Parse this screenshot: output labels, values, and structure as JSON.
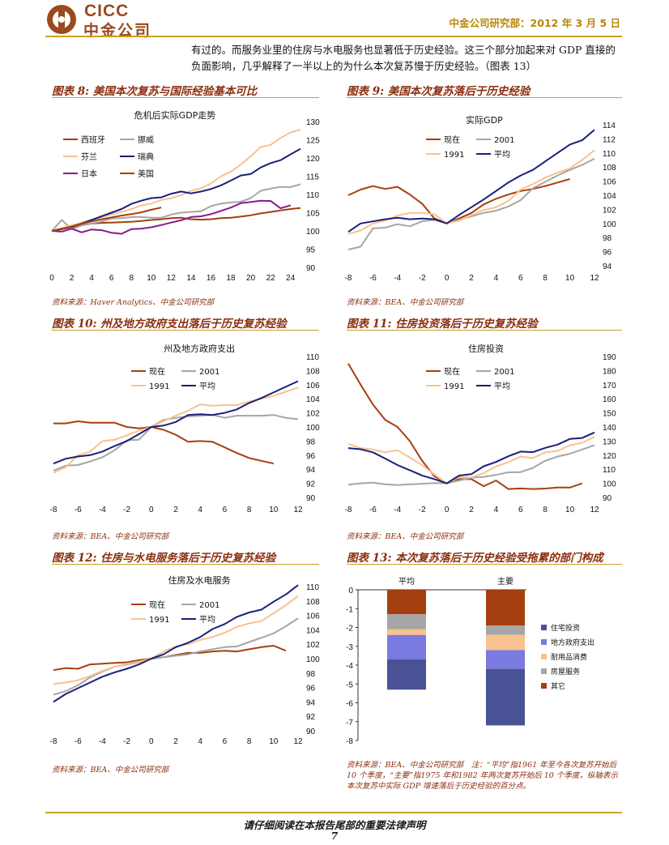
{
  "header": {
    "logo_text": "CICC",
    "logo_cn": "中金公司",
    "right": "中金公司研究部：2012 年 3 月 5 日"
  },
  "body_text": "有过的。而服务业里的住房与水电服务也显著低于历史经验。这三个部分加起来对 GDP 直接的负面影响，几乎解释了一半以上的为什么本次复苏慢于历史经验。（图表 13）",
  "figures": [
    {
      "title": "图表 8: 美国本次复苏与国际经验基本可比",
      "source": "资料来源：Haver Analytics、中金公司研究部"
    },
    {
      "title": "图表 9: 美国本次复苏落后于历史经验",
      "source": "资料来源：BEA、中金公司研究部"
    },
    {
      "title": "图表 10: 州及地方政府支出落后于历史复苏经验",
      "source": "资料来源：BEA、中金公司研究部"
    },
    {
      "title": "图表 11: 住房投资落后于历史复苏经验",
      "source": "资料来源：BEA、中金公司研究部"
    },
    {
      "title": "图表 12: 住房与水电服务落后于历史复苏经验",
      "source": "资料来源：BEA、中金公司研究部"
    },
    {
      "title": "图表 13: 本次复苏落后于历史经验受拖累的部门构成",
      "source": ""
    }
  ],
  "note13": "资料来源：BEA、中金公司研究部　注：“平均”指1961 年至今各次复苏开始后 10 个季度，“主要”指1975 年和1982 年两次复苏开始后 10 个季度，纵轴表示本次复苏中实际 GDP 增速落后于历史经验的百分点。",
  "footer": "请仔细阅读在本报告尾部的重要法律声明",
  "page_number": "7",
  "colors": {
    "brown": "#a63f0f",
    "gray": "#a6a6a6",
    "peach": "#f9c18e",
    "navy": "#1a1f7a",
    "purple": "#8a1a8a",
    "gold": "#c9a227"
  },
  "chart_data": [
    {
      "type": "line",
      "title": "危机后实际GDP走势",
      "x": [
        0,
        1,
        2,
        3,
        4,
        5,
        6,
        7,
        8,
        9,
        10,
        11,
        12,
        13,
        14,
        15,
        16,
        17,
        18,
        19,
        20,
        21,
        22,
        23,
        24,
        25
      ],
      "xticks": [
        0,
        2,
        4,
        6,
        8,
        10,
        12,
        14,
        16,
        18,
        20,
        22,
        24
      ],
      "ylim": [
        90,
        130
      ],
      "yticks": [
        90,
        95,
        100,
        105,
        110,
        115,
        120,
        125,
        130
      ],
      "legend": [
        "西班牙",
        "挪威",
        "芬兰",
        "瑞典",
        "日本",
        "美国"
      ],
      "series": [
        {
          "name": "西班牙",
          "color": "#a63f0f",
          "values": [
            100,
            100.5,
            101,
            101.6,
            102,
            102.2,
            102.3,
            102.4,
            102.5,
            102.7,
            103,
            103.2,
            103.5,
            103.6,
            103.2,
            103.1,
            103.2,
            103.5,
            103.6,
            103.9,
            104.3,
            104.8,
            105.2,
            105.6,
            106,
            106.3
          ]
        },
        {
          "name": "挪威",
          "color": "#a6a6a6",
          "values": [
            100,
            103,
            100.5,
            101.5,
            102,
            102.6,
            103.4,
            103.5,
            103.8,
            103.8,
            103.6,
            103.6,
            104.5,
            105,
            105.2,
            105.4,
            106.8,
            107.5,
            107.8,
            108,
            109,
            111,
            111.6,
            112.1,
            112,
            112.8
          ]
        },
        {
          "name": "芬兰",
          "color": "#f9c18e",
          "values": [
            100,
            100.8,
            101.5,
            102.3,
            103,
            103.8,
            104.5,
            105.2,
            106,
            107,
            107.5,
            108.5,
            109,
            109.8,
            111,
            111.7,
            113,
            115,
            116.2,
            118.2,
            120.5,
            123,
            123.6,
            125.5,
            127,
            127.8
          ]
        },
        {
          "name": "瑞典",
          "color": "#1a1f7a",
          "values": [
            100,
            100.5,
            101.2,
            102,
            103,
            104,
            105,
            106,
            107.4,
            108.3,
            109,
            109.2,
            110.2,
            110.8,
            110.3,
            110.8,
            111.5,
            112.5,
            113.8,
            115.2,
            115.6,
            117.4,
            118.6,
            119.4,
            121,
            122.5
          ]
        },
        {
          "name": "日本",
          "color": "#8a1a8a",
          "values": [
            100,
            99.8,
            100.6,
            99.6,
            100.4,
            100.2,
            99.5,
            99.2,
            100.5,
            100.6,
            101,
            101.6,
            102.3,
            102.9,
            103.8,
            104,
            104.6,
            105.5,
            106.4,
            107.6,
            107.9,
            108.3,
            108.2,
            106.2,
            107,
            null
          ]
        },
        {
          "name": "美国",
          "color": "#a63f0f",
          "values": [
            100,
            100.6,
            101.2,
            102,
            102.6,
            103.2,
            103.7,
            104.2,
            104.6,
            105.1,
            105.8,
            106.4,
            null,
            null,
            null,
            null,
            null,
            null,
            null,
            null,
            null,
            null,
            null,
            null,
            null,
            null
          ]
        }
      ]
    },
    {
      "type": "line",
      "title": "实际GDP",
      "x": [
        -8,
        -7,
        -6,
        -5,
        -4,
        -3,
        -2,
        -1,
        0,
        1,
        2,
        3,
        4,
        5,
        6,
        7,
        8,
        9,
        10,
        11,
        12
      ],
      "xticks": [
        -8,
        -6,
        -4,
        -2,
        0,
        2,
        4,
        6,
        8,
        10,
        12
      ],
      "ylim": [
        94,
        114
      ],
      "yticks": [
        94,
        96,
        98,
        100,
        102,
        104,
        106,
        108,
        110,
        112,
        114
      ],
      "legend": [
        "现在",
        "2001",
        "1991",
        "平均"
      ],
      "series": [
        {
          "name": "现在",
          "color": "#a63f0f",
          "values": [
            104,
            104.8,
            105.3,
            104.9,
            105.2,
            104.1,
            102.8,
            100.7,
            100,
            100.7,
            101.5,
            102.7,
            103.5,
            104.1,
            104.6,
            104.9,
            105.3,
            105.8,
            106.3,
            null,
            null
          ]
        },
        {
          "name": "2001",
          "color": "#a6a6a6",
          "values": [
            96.3,
            96.7,
            99.3,
            99.4,
            99.9,
            99.6,
            100.3,
            100.5,
            100,
            100.5,
            101,
            101.5,
            101.8,
            102.4,
            103.3,
            105,
            105.9,
            106.8,
            107.6,
            108.3,
            109.2
          ]
        },
        {
          "name": "1991",
          "color": "#f9c18e",
          "values": [
            98.5,
            99,
            100,
            100.4,
            101.1,
            101.5,
            101.5,
            101.3,
            100,
            100.4,
            101.2,
            101.9,
            102.3,
            103.2,
            104.8,
            105.6,
            106.5,
            107.2,
            107.8,
            109,
            110.4
          ]
        },
        {
          "name": "平均",
          "color": "#1a1f7a",
          "values": [
            98.8,
            100,
            100.3,
            100.6,
            100.8,
            100.6,
            100.7,
            100.6,
            100,
            101.2,
            102.3,
            103.4,
            104.6,
            105.8,
            106.8,
            107.6,
            108.8,
            110,
            111.2,
            111.8,
            113.3
          ]
        }
      ]
    },
    {
      "type": "line",
      "title": "州及地方政府支出",
      "x": [
        -8,
        -7,
        -6,
        -5,
        -4,
        -3,
        -2,
        -1,
        0,
        1,
        2,
        3,
        4,
        5,
        6,
        7,
        8,
        9,
        10,
        11,
        12
      ],
      "xticks": [
        -8,
        -6,
        -4,
        -2,
        0,
        2,
        4,
        6,
        8,
        10,
        12
      ],
      "ylim": [
        90,
        110
      ],
      "yticks": [
        90,
        92,
        94,
        96,
        98,
        100,
        102,
        104,
        106,
        108,
        110
      ],
      "legend": [
        "现在",
        "2001",
        "1991",
        "平均"
      ],
      "series": [
        {
          "name": "现在",
          "color": "#a63f0f",
          "values": [
            100.5,
            100.5,
            100.8,
            100.6,
            100.6,
            100.6,
            100,
            99.8,
            100,
            99.6,
            98.9,
            97.9,
            98,
            97.9,
            97.1,
            96.3,
            95.6,
            95.2,
            94.8,
            null,
            null
          ]
        },
        {
          "name": "2001",
          "color": "#a6a6a6",
          "values": [
            93.8,
            94.5,
            94.6,
            95.1,
            95.7,
            96.7,
            98.1,
            98.2,
            100,
            101,
            101.3,
            101.5,
            101.6,
            101.7,
            101.3,
            101.6,
            101.6,
            101.6,
            101.7,
            101.3,
            101.1
          ]
        },
        {
          "name": "1991",
          "color": "#f9c18e",
          "values": [
            93.5,
            94.3,
            96,
            96.5,
            98,
            98.2,
            98.8,
            99.5,
            100,
            100.8,
            101.6,
            102.3,
            103.2,
            103,
            103.1,
            103.1,
            103.6,
            104,
            104.4,
            105,
            105.6
          ]
        },
        {
          "name": "平均",
          "color": "#1a1f7a",
          "values": [
            94.8,
            95.5,
            95.8,
            96,
            96.5,
            97.3,
            98,
            99,
            100,
            100.2,
            100.7,
            101.7,
            101.8,
            101.7,
            102,
            102.5,
            103.4,
            104.1,
            104.9,
            105.7,
            106.5
          ]
        }
      ]
    },
    {
      "type": "line",
      "title": "住房投资",
      "x": [
        -8,
        -7,
        -6,
        -5,
        -4,
        -3,
        -2,
        -1,
        0,
        1,
        2,
        3,
        4,
        5,
        6,
        7,
        8,
        9,
        10,
        11,
        12
      ],
      "xticks": [
        -8,
        -6,
        -4,
        -2,
        0,
        2,
        4,
        6,
        8,
        10,
        12
      ],
      "ylim": [
        90,
        190
      ],
      "yticks": [
        90,
        100,
        110,
        120,
        130,
        140,
        150,
        160,
        170,
        180,
        190
      ],
      "legend": [
        "现在",
        "2001",
        "1991",
        "平均"
      ],
      "series": [
        {
          "name": "现在",
          "color": "#a63f0f",
          "values": [
            185,
            170,
            156,
            145,
            140,
            130,
            116,
            105,
            100,
            103,
            103,
            98,
            102,
            96,
            96.4,
            96,
            96.3,
            97,
            97,
            100,
            null
          ]
        },
        {
          "name": "2001",
          "color": "#a6a6a6",
          "values": [
            99,
            100,
            100.5,
            99.3,
            98.8,
            99.3,
            99.7,
            100.2,
            100,
            102,
            104,
            104.6,
            106,
            107.8,
            108,
            111,
            116,
            119,
            121,
            124,
            127
          ]
        },
        {
          "name": "1991",
          "color": "#f9c18e",
          "values": [
            128,
            125,
            124,
            122,
            123.5,
            118.2,
            113,
            106.2,
            100,
            104.5,
            104.2,
            107.2,
            112,
            115,
            119,
            118,
            122,
            123,
            127,
            128.8,
            133
          ]
        },
        {
          "name": "平均",
          "color": "#1a1f7a",
          "values": [
            125,
            124.2,
            122,
            117.6,
            113,
            109.3,
            105.6,
            103,
            100,
            105.5,
            106.5,
            112.1,
            115.2,
            119.2,
            122.5,
            122.1,
            125.2,
            127.5,
            131.5,
            132.2,
            136.1
          ]
        }
      ]
    },
    {
      "type": "line",
      "title": "住房及水电服务",
      "x": [
        -8,
        -7,
        -6,
        -5,
        -4,
        -3,
        -2,
        -1,
        0,
        1,
        2,
        3,
        4,
        5,
        6,
        7,
        8,
        9,
        10,
        11,
        12
      ],
      "xticks": [
        -8,
        -6,
        -4,
        -2,
        0,
        2,
        4,
        6,
        8,
        10,
        12
      ],
      "ylim": [
        90,
        110
      ],
      "yticks": [
        90,
        92,
        94,
        96,
        98,
        100,
        102,
        104,
        106,
        108,
        110
      ],
      "legend": [
        "现在",
        "2001",
        "1991",
        "平均"
      ],
      "series": [
        {
          "name": "现在",
          "color": "#a63f0f",
          "values": [
            98.4,
            98.7,
            98.6,
            99.2,
            99.3,
            99.4,
            99.5,
            99.8,
            100,
            100.2,
            100.5,
            100.8,
            100.8,
            101,
            101.1,
            101,
            101.3,
            101.6,
            101.8,
            101.1,
            null
          ]
        },
        {
          "name": "2001",
          "color": "#a6a6a6",
          "values": [
            95,
            95.5,
            96.3,
            97.4,
            98.2,
            98.9,
            99.2,
            99.5,
            100,
            100.2,
            100.4,
            100.6,
            101,
            101.3,
            101.6,
            101.7,
            102.3,
            102.9,
            103.5,
            104.5,
            105.6
          ]
        },
        {
          "name": "1991",
          "color": "#f9c18e",
          "values": [
            96.5,
            96.7,
            97,
            97.6,
            98.3,
            98.9,
            99.3,
            99.6,
            100,
            101,
            101.7,
            102,
            102.6,
            103,
            103.6,
            104.4,
            104.9,
            105.2,
            106.3,
            107.4,
            108.7
          ]
        },
        {
          "name": "平均",
          "color": "#1a1f7a",
          "values": [
            94,
            95.1,
            95.9,
            96.7,
            97.5,
            98.1,
            98.6,
            99.2,
            100,
            100.6,
            101.6,
            102.2,
            103,
            104.1,
            104.8,
            105.8,
            106.4,
            106.8,
            107.9,
            108.9,
            110.2
          ]
        }
      ]
    },
    {
      "type": "bar",
      "stacked": true,
      "categories": [
        "平均",
        "主要"
      ],
      "ylim": [
        -8,
        0
      ],
      "yticks": [
        0,
        -1,
        -2,
        -3,
        -4,
        -5,
        -6,
        -7,
        -8
      ],
      "legend": [
        "住宅投资",
        "地方政府支出",
        "耐用品消费",
        "房屋服务",
        "其它"
      ],
      "series": [
        {
          "name": "其它",
          "color": "#a63f0f",
          "values": [
            -1.3,
            -1.9
          ]
        },
        {
          "name": "房屋服务",
          "color": "#a6a6a6",
          "values": [
            -0.8,
            -0.5
          ]
        },
        {
          "name": "耐用品消费",
          "color": "#f9c18e",
          "values": [
            -0.3,
            -0.8
          ]
        },
        {
          "name": "地方政府支出",
          "color": "#7a7ae0",
          "values": [
            -1.3,
            -1.0
          ]
        },
        {
          "name": "住宅投资",
          "color": "#4a5296",
          "values": [
            -1.6,
            -3.0
          ]
        }
      ]
    }
  ]
}
